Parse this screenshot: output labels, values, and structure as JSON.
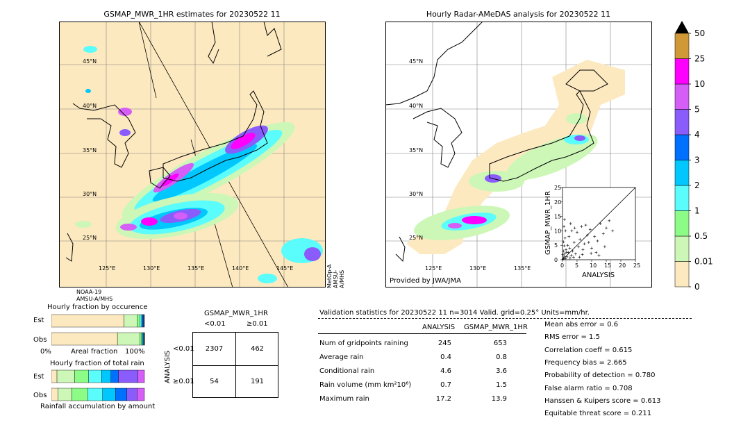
{
  "colors": {
    "land": "#fde9bf",
    "rain_levels": [
      "#fde9bf",
      "#ccf7b7",
      "#8dfc86",
      "#5afcfc",
      "#00c8ff",
      "#0070ff",
      "#8a5cfb",
      "#d45ef6",
      "#ff00ff",
      "#d09836"
    ],
    "frame": "#000000",
    "grid": "#808080"
  },
  "map_left": {
    "title": "GSMAP_MWR_1HR estimates for 20230522 11",
    "lat_labels": [
      "45°N",
      "40°N",
      "35°N",
      "30°N",
      "25°N"
    ],
    "lon_labels": [
      "125°E",
      "130°E",
      "135°E",
      "140°E",
      "145°E"
    ],
    "sat_left": "NOAA-19\nAMSU-A/MHS",
    "sat_right": "MetOp-A\nAMSU-A/MHS"
  },
  "map_right": {
    "title": "Hourly Radar-AMeDAS analysis for 20230522 11",
    "lat_labels": [
      "45°N",
      "40°N",
      "35°N",
      "30°N",
      "25°N"
    ],
    "lon_labels": [
      "125°E",
      "130°E",
      "135°E"
    ],
    "credit": "Provided by JWA/JMA"
  },
  "colorbar": {
    "ticks": [
      "50",
      "25",
      "10",
      "5",
      "4",
      "3",
      "2",
      "1",
      "0.5",
      "0.01",
      "0"
    ]
  },
  "scatter": {
    "ylabel": "GSMAP_MWR_1HR",
    "xlabel": "ANALYSIS",
    "ticks": [
      "0",
      "5",
      "10",
      "15",
      "20",
      "25"
    ]
  },
  "fraction": {
    "title1": "Hourly fraction by occurence",
    "title2": "Hourly fraction of total rain",
    "est": "Est",
    "obs": "Obs",
    "axis_left": "0%",
    "axis_mid": "Areal fraction",
    "axis_right": "100%",
    "footer": "Rainfall accumulation by amount"
  },
  "contingency": {
    "title": "GSMAP_MWR_1HR",
    "col1": "<0.01",
    "col2": "≥0.01",
    "row_label": "ANALYSIS",
    "row1": "<0.01",
    "row2": "≥0.01",
    "cells": [
      "2307",
      "462",
      "54",
      "191"
    ]
  },
  "validation": {
    "header": "Validation statistics for 20230522 11  n=3014 Valid. grid=0.25° Units=mm/hr.",
    "col_analysis": "ANALYSIS",
    "col_gsmap": "GSMAP_MWR_1HR",
    "rows": [
      {
        "label": "Num of gridpoints raining",
        "a": "245",
        "g": "653"
      },
      {
        "label": "Average rain",
        "a": "0.4",
        "g": "0.8"
      },
      {
        "label": "Conditional rain",
        "a": "4.6",
        "g": "3.6"
      },
      {
        "label": "Rain volume (mm km²10⁶)",
        "a": "0.7",
        "g": "1.5"
      },
      {
        "label": "Maximum rain",
        "a": "17.2",
        "g": "13.9"
      }
    ],
    "scores": [
      "Mean abs error =    0.6",
      "RMS error =    1.5",
      "Correlation coeff =  0.615",
      "Frequency bias =  2.665",
      "Probability of detection =  0.780",
      "False alarm ratio =  0.708",
      "Hanssen & Kuipers score =  0.613",
      "Equitable threat score =  0.211"
    ]
  },
  "chart_data": [
    {
      "type": "scatter",
      "title": "",
      "xlabel": "ANALYSIS",
      "ylabel": "GSMAP_MWR_1HR",
      "xlim": [
        0,
        25
      ],
      "ylim": [
        0,
        25
      ],
      "points": [
        [
          0.3,
          0.5
        ],
        [
          0.5,
          1.2
        ],
        [
          0.8,
          2.1
        ],
        [
          1.0,
          0.4
        ],
        [
          1.2,
          3.5
        ],
        [
          0.6,
          4.8
        ],
        [
          0.4,
          6.2
        ],
        [
          0.9,
          7.5
        ],
        [
          1.5,
          1.0
        ],
        [
          2.0,
          2.5
        ],
        [
          1.8,
          5.0
        ],
        [
          2.5,
          4.0
        ],
        [
          3.0,
          1.5
        ],
        [
          2.2,
          8.0
        ],
        [
          3.5,
          3.0
        ],
        [
          4.0,
          6.0
        ],
        [
          4.5,
          2.0
        ],
        [
          5.0,
          9.5
        ],
        [
          5.5,
          4.5
        ],
        [
          6.0,
          7.0
        ],
        [
          6.5,
          11.5
        ],
        [
          7.0,
          3.5
        ],
        [
          7.5,
          5.5
        ],
        [
          8.0,
          12.0
        ],
        [
          8.5,
          8.5
        ],
        [
          9.0,
          6.0
        ],
        [
          9.5,
          10.5
        ],
        [
          10.0,
          4.0
        ],
        [
          11.0,
          8.0
        ],
        [
          12.0,
          6.5
        ],
        [
          13.0,
          12.5
        ],
        [
          14.0,
          9.0
        ],
        [
          15.0,
          11.0
        ],
        [
          16.0,
          13.5
        ],
        [
          17.2,
          10.0
        ],
        [
          1.0,
          10.0
        ],
        [
          0.5,
          11.5
        ],
        [
          0.7,
          13.9
        ],
        [
          2.8,
          12.5
        ],
        [
          3.2,
          10.0
        ],
        [
          0.2,
          0.2
        ],
        [
          0.1,
          1.8
        ],
        [
          0.4,
          3.0
        ],
        [
          1.4,
          2.6
        ],
        [
          2.6,
          0.6
        ],
        [
          3.8,
          0.8
        ],
        [
          4.2,
          11.0
        ],
        [
          5.8,
          0.9
        ],
        [
          6.8,
          1.8
        ],
        [
          12.5,
          1.5
        ],
        [
          14.5,
          4.5
        ],
        [
          11.5,
          2.5
        ],
        [
          9.8,
          2.2
        ]
      ]
    },
    {
      "type": "bar",
      "title": "Hourly fraction by occurence",
      "categories": [
        "Est",
        "Obs"
      ],
      "series": [
        {
          "values": [
            0.78,
            0.71
          ]
        },
        {
          "values": [
            0.14,
            0.24
          ]
        },
        {
          "values": [
            0.03,
            0.02
          ]
        },
        {
          "values": [
            0.02,
            0.01
          ]
        },
        {
          "values": [
            0.01,
            0.01
          ]
        },
        {
          "values": [
            0.01,
            0.005
          ]
        },
        {
          "values": [
            0.005,
            0.003
          ]
        },
        {
          "values": [
            0.005,
            0.002
          ]
        }
      ]
    },
    {
      "type": "bar",
      "title": "Hourly fraction of total rain",
      "categories": [
        "Est",
        "Obs"
      ],
      "series": [
        {
          "values": [
            0.06,
            0.07
          ]
        },
        {
          "values": [
            0.19,
            0.15
          ]
        },
        {
          "values": [
            0.15,
            0.17
          ]
        },
        {
          "values": [
            0.14,
            0.16
          ]
        },
        {
          "values": [
            0.1,
            0.14
          ]
        },
        {
          "values": [
            0.08,
            0.12
          ]
        },
        {
          "values": [
            0.21,
            0.11
          ]
        },
        {
          "values": [
            0.07,
            0.08
          ]
        }
      ]
    }
  ]
}
